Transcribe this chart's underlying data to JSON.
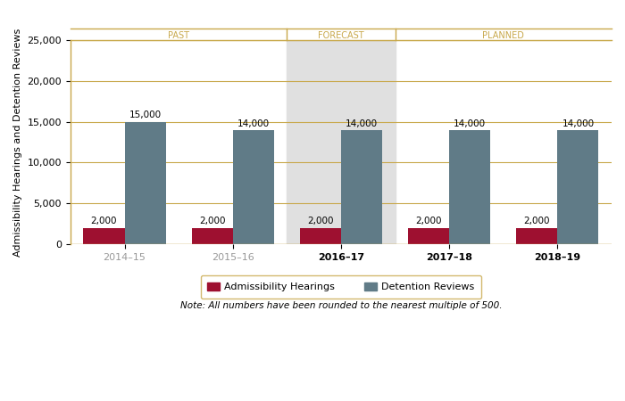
{
  "categories": [
    "2014–15",
    "2015–16",
    "2016–17",
    "2017–18",
    "2018–19"
  ],
  "admissibility": [
    2000,
    2000,
    2000,
    2000,
    2000
  ],
  "detention": [
    15000,
    14000,
    14000,
    14000,
    14000
  ],
  "bar_color_adm": "#9e1030",
  "bar_color_det": "#607b87",
  "ylim": [
    0,
    25000
  ],
  "yticks": [
    0,
    5000,
    10000,
    15000,
    20000,
    25000
  ],
  "ytick_labels": [
    "0",
    "5,000",
    "10,000",
    "15,000",
    "20,000",
    "25,000"
  ],
  "ylabel": "Admissibility Hearings and Detention Reviews",
  "grid_color": "#c8a84b",
  "bg_color": "#ffffff",
  "forecast_shade_color": "#e0e0e0",
  "forecast_col_index": 2,
  "section_labels": [
    "PAST",
    "FORECAST",
    "PLANNED"
  ],
  "section_label_color": "#c8a84b",
  "section_label_fontsize": 7,
  "bar_width": 0.38,
  "note_text": "Note: All numbers have been rounded to the nearest multiple of 500.",
  "legend_label_adm": "Admissibility Hearings",
  "legend_label_det": "Detention Reviews",
  "past_xtick_color": "#999999",
  "forecast_xtick_color": "#000000",
  "planned_xtick_color": "#000000",
  "xtick_fontsize": 8,
  "ytick_fontsize": 8,
  "ylabel_fontsize": 8,
  "value_label_fontsize": 7.5
}
